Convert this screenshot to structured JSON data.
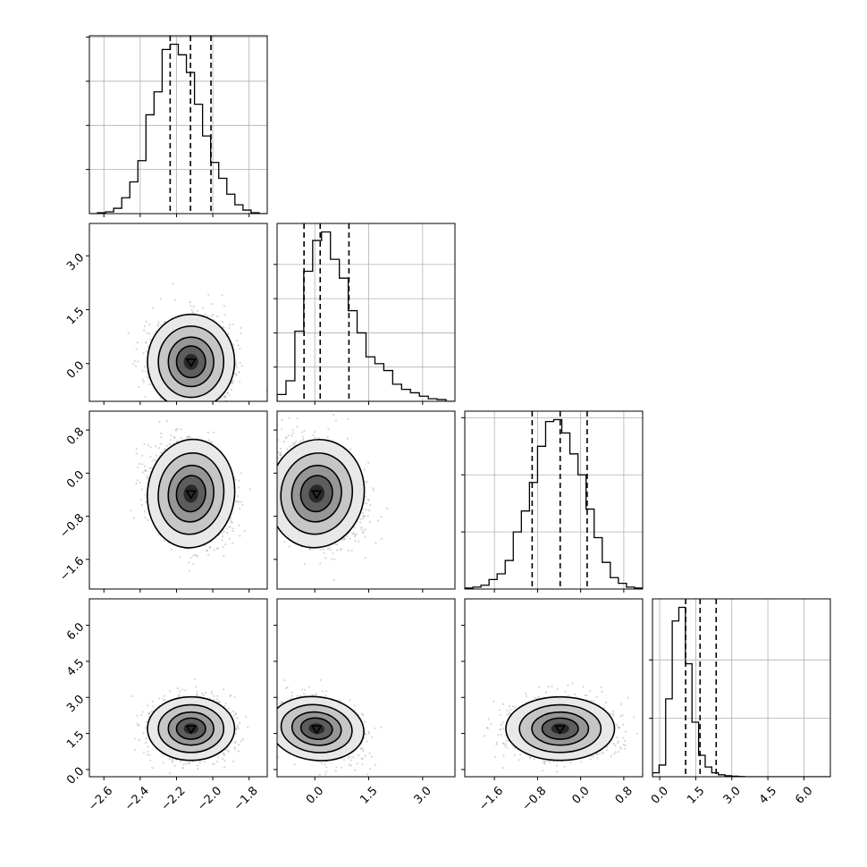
{
  "chart_data": {
    "type": "corner",
    "grid": true,
    "style": {
      "hist_color": "#000000",
      "quantile_line_color": "#000000",
      "scatter_color": "#b5b5b5",
      "contour_color": "#000000",
      "density_colors": [
        "#ffffff",
        "#e8e8e8",
        "#c4c4c4",
        "#939393",
        "#5a5a5a",
        "#262626"
      ]
    },
    "parameters": [
      {
        "range": [
          -2.68,
          -1.7
        ],
        "ticks": [
          -2.6,
          -2.4,
          -2.2,
          -2.0,
          -1.8
        ],
        "tick_labels": [
          "−2.6",
          "−2.4",
          "−2.2",
          "−2.0",
          "−1.8"
        ],
        "quantiles": [
          -2.235,
          -2.123,
          -2.01
        ],
        "hist_ticks": [
          0.25,
          0.5,
          0.75,
          1.0
        ],
        "hist_values": [
          0,
          0.005,
          0.01,
          0.03,
          0.09,
          0.18,
          0.3,
          0.56,
          0.69,
          0.93,
          0.96,
          0.9,
          0.8,
          0.62,
          0.44,
          0.29,
          0.2,
          0.11,
          0.05,
          0.02,
          0.005,
          0
        ],
        "center": -2.12,
        "sd": 0.1
      },
      {
        "range": [
          -1.05,
          3.9
        ],
        "ticks": [
          0.0,
          1.5,
          3.0
        ],
        "tick_labels": [
          "0.0",
          "1.5",
          "3.0"
        ],
        "quantiles": [
          -0.3,
          0.15,
          0.95
        ],
        "hist_ticks": [
          0.2,
          0.4,
          0.6,
          0.8
        ],
        "hist_values": [
          0.04,
          0.12,
          0.41,
          0.76,
          0.94,
          0.99,
          0.83,
          0.72,
          0.53,
          0.4,
          0.26,
          0.22,
          0.18,
          0.1,
          0.07,
          0.05,
          0.03,
          0.015,
          0.01,
          0
        ],
        "center": 0.05,
        "sd": 0.55
      },
      {
        "range": [
          -2.15,
          1.15
        ],
        "ticks": [
          -1.6,
          -0.8,
          0.0,
          0.8
        ],
        "tick_labels": [
          "−1.6",
          "−0.8",
          "0.0",
          "0.8"
        ],
        "quantiles": [
          -0.9,
          -0.38,
          0.12
        ],
        "hist_ticks": [
          0.3,
          0.6,
          0.9
        ],
        "hist_values": [
          0.005,
          0.01,
          0.02,
          0.05,
          0.08,
          0.15,
          0.3,
          0.41,
          0.56,
          0.75,
          0.88,
          0.89,
          0.82,
          0.71,
          0.6,
          0.42,
          0.27,
          0.14,
          0.06,
          0.03,
          0.01,
          0.005
        ],
        "center": -0.38,
        "sd": 0.42
      },
      {
        "range": [
          -0.3,
          7.1
        ],
        "ticks": [
          0.0,
          1.5,
          3.0,
          4.5,
          6.0
        ],
        "tick_labels": [
          "0.0",
          "1.5",
          "3.0",
          "4.5",
          "6.0"
        ],
        "quantiles": [
          1.08,
          1.68,
          2.35
        ],
        "hist_ticks": [
          0.3,
          0.6
        ],
        "hist_values": [
          0.02,
          0.06,
          0.4,
          0.8,
          0.87,
          0.58,
          0.28,
          0.11,
          0.05,
          0.02,
          0.01,
          0.005,
          0.003,
          0.001,
          0,
          0,
          0,
          0,
          0,
          0,
          0,
          0,
          0,
          0,
          0,
          0,
          0
        ],
        "center": 1.7,
        "sd": 0.55
      }
    ],
    "correlations": [
      {
        "i": 1,
        "j": 0,
        "rho": 0.0
      },
      {
        "i": 2,
        "j": 0,
        "rho": -0.15
      },
      {
        "i": 2,
        "j": 1,
        "rho": -0.3
      },
      {
        "i": 3,
        "j": 0,
        "rho": 0.0
      },
      {
        "i": 3,
        "j": 1,
        "rho": -0.3
      },
      {
        "i": 3,
        "j": 2,
        "rho": 0.0
      }
    ]
  }
}
